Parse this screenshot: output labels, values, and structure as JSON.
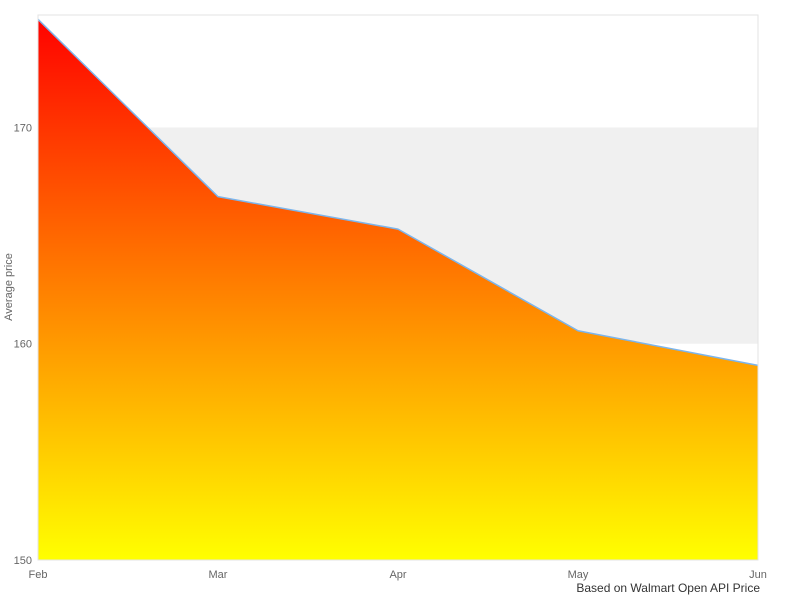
{
  "chart_data": {
    "type": "area",
    "title": "",
    "xlabel": "",
    "ylabel": "Average price",
    "caption": "Based on Walmart Open API Price",
    "x": [
      "Feb",
      "Mar",
      "Apr",
      "May",
      "Jun"
    ],
    "values": [
      175,
      166.8,
      165.3,
      160.6,
      159
    ],
    "ylim": [
      150,
      175.2
    ],
    "yticks": [
      150,
      160,
      170
    ],
    "bands": [
      [
        160,
        170
      ]
    ],
    "grid": "alternating-band",
    "legend": "none",
    "colors": {
      "gradient_top": "#ff0000",
      "gradient_bottom": "#ffff00",
      "line": "#7cb5ec",
      "band": "#f0f0f0",
      "plot_border": "#e3e3e3",
      "tick_text": "#666666",
      "caption_text": "#333333",
      "background": "#ffffff"
    }
  }
}
